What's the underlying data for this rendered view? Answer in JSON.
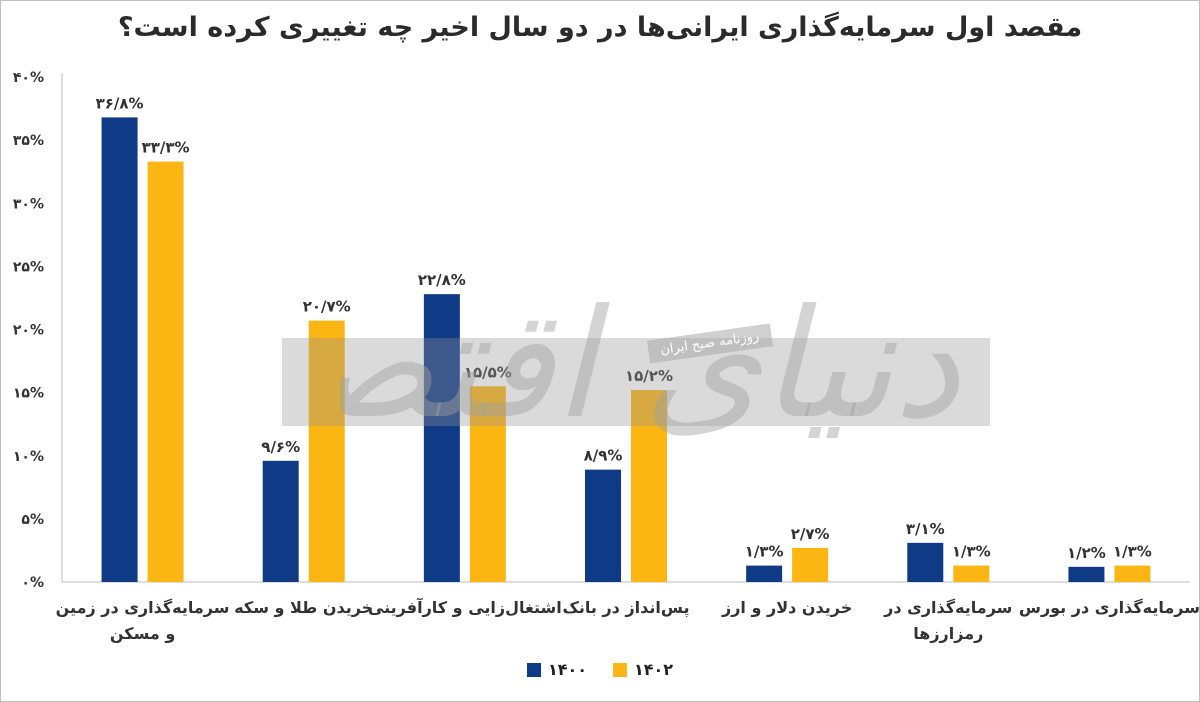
{
  "chart_data": {
    "type": "bar",
    "title": "مقصد اول سرمایه‌گذاری ایرانی‌ها در دو سال اخیر چه تغییری کرده است؟",
    "categories": [
      [
        "سرمایه‌گذاری در زمین",
        "و مسکن"
      ],
      [
        "خریدن طلا و سکه"
      ],
      [
        "اشتغال‌زایی و کارآفرینی"
      ],
      [
        "پس‌انداز در بانک"
      ],
      [
        "خریدن دلار و ارز"
      ],
      [
        "سرمایه‌گذاری در",
        "رمزارزها"
      ],
      [
        "سرمایه‌گذاری در بورس"
      ]
    ],
    "series": [
      {
        "name": "۱۴۰۰",
        "color": "#0e3a86",
        "values": [
          36.8,
          9.6,
          22.8,
          8.9,
          1.3,
          3.1,
          1.2
        ],
        "labels": [
          "۳۶/۸%",
          "۹/۶%",
          "۲۲/۸%",
          "۸/۹%",
          "۱/۳%",
          "۳/۱%",
          "۱/۲%"
        ]
      },
      {
        "name": "۱۴۰۲",
        "color": "#fbb614",
        "values": [
          33.3,
          20.7,
          15.5,
          15.2,
          2.7,
          1.3,
          1.3
        ],
        "labels": [
          "۳۳/۳%",
          "۲۰/۷%",
          "۱۵/۵%",
          "۱۵/۲%",
          "۲/۷%",
          "۱/۳%",
          "۱/۳%"
        ]
      }
    ],
    "yticks": [
      0,
      5,
      10,
      15,
      20,
      25,
      30,
      35,
      40
    ],
    "ytick_labels": [
      "۰%",
      "۵%",
      "۱۰%",
      "۱۵%",
      "۲۰%",
      "۲۵%",
      "۳۰%",
      "۳۵%",
      "۴۰%"
    ],
    "ylim": [
      0,
      40
    ],
    "grid": false,
    "legend": "bottom"
  },
  "watermark": {
    "small_text": "روزنامه صبح ایران",
    "script_text": "دنیای اقتصاد"
  }
}
